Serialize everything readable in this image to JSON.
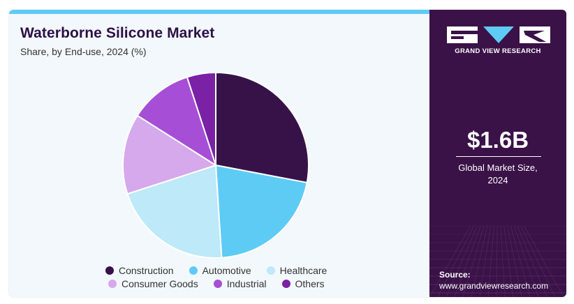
{
  "title": "Waterborne Silicone Market",
  "subtitle": "Share, by End-use, 2024 (%)",
  "brand": {
    "name": "GRAND VIEW RESEARCH",
    "logo": "gvr-logo"
  },
  "stat": {
    "value": "$1.6B",
    "label_line1": "Global Market Size,",
    "label_line2": "2024"
  },
  "source": {
    "label": "Source:",
    "url": "www.grandviewresearch.com"
  },
  "colors": {
    "accent_bar": "#5ecbf5",
    "sidebar_bg": "#3a1247",
    "title": "#2e1045"
  },
  "chart_data": {
    "type": "pie",
    "start_angle_deg": 0,
    "direction": "clockwise",
    "categories": [
      "Construction",
      "Automotive",
      "Healthcare",
      "Consumer Goods",
      "Industrial",
      "Others"
    ],
    "values": [
      28,
      21,
      21,
      14,
      11,
      5
    ],
    "colors": [
      "#371249",
      "#5ecbf5",
      "#bde9f9",
      "#d6a8ec",
      "#a64fd6",
      "#7a21a6"
    ],
    "legend_position": "bottom"
  }
}
